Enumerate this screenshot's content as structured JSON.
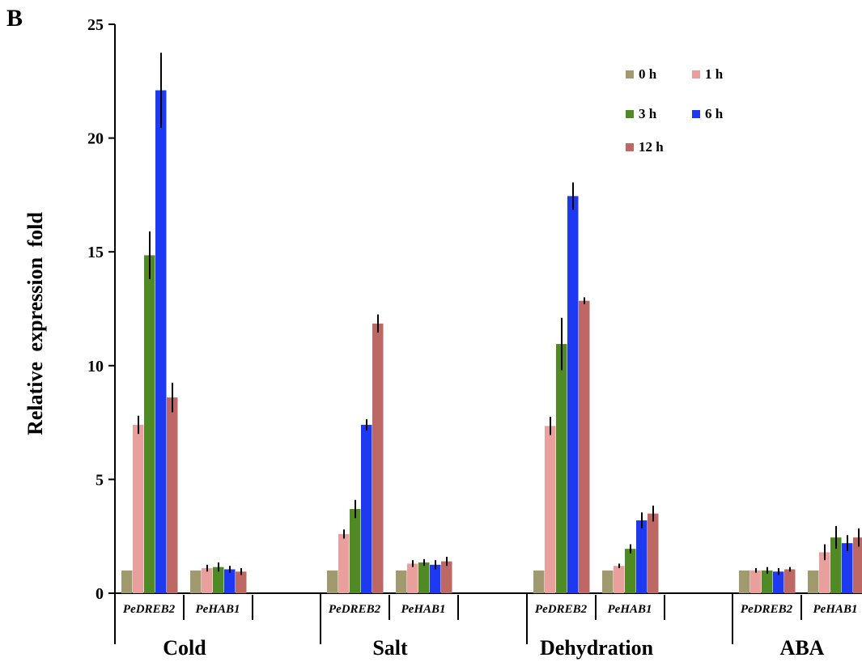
{
  "panel_label": "B",
  "chart_data": {
    "type": "bar",
    "title": "",
    "ylabel": "Relative expression fold",
    "ylim": [
      0,
      25
    ],
    "yticks": [
      "0",
      "5",
      "10",
      "15",
      "20",
      "25"
    ],
    "legend_position": "top-right",
    "series": [
      {
        "name": "0 h",
        "color": "#a09a6e"
      },
      {
        "name": "1 h",
        "color": "#e9a09c"
      },
      {
        "name": "3 h",
        "color": "#4f8a25"
      },
      {
        "name": "6 h",
        "color": "#1e39f2"
      },
      {
        "name": "12 h",
        "color": "#bd6865"
      }
    ],
    "groups": [
      {
        "treatment": "Cold",
        "genes": [
          {
            "gene": "PeDREB2",
            "values": [
              1.0,
              7.4,
              14.85,
              22.1,
              8.6
            ],
            "errors": [
              0,
              0.4,
              1.05,
              1.65,
              0.65
            ]
          },
          {
            "gene": "PeHAB1",
            "values": [
              1.0,
              1.1,
              1.15,
              1.05,
              0.95
            ],
            "errors": [
              0,
              0.15,
              0.2,
              0.15,
              0.15
            ]
          }
        ]
      },
      {
        "treatment": "Salt",
        "genes": [
          {
            "gene": "PeDREB2",
            "values": [
              1.0,
              2.6,
              3.7,
              7.4,
              11.85
            ],
            "errors": [
              0,
              0.2,
              0.4,
              0.25,
              0.4
            ]
          },
          {
            "gene": "PeHAB1",
            "values": [
              1.0,
              1.3,
              1.35,
              1.25,
              1.4
            ],
            "errors": [
              0,
              0.15,
              0.15,
              0.2,
              0.2
            ]
          }
        ]
      },
      {
        "treatment": "Dehydration",
        "genes": [
          {
            "gene": "PeDREB2",
            "values": [
              1.0,
              7.35,
              10.95,
              17.45,
              12.85
            ],
            "errors": [
              0,
              0.4,
              1.15,
              0.6,
              0.15
            ]
          },
          {
            "gene": "PeHAB1",
            "values": [
              1.0,
              1.2,
              1.95,
              3.2,
              3.5
            ],
            "errors": [
              0,
              0.1,
              0.2,
              0.35,
              0.35
            ]
          }
        ]
      },
      {
        "treatment": "ABA",
        "genes": [
          {
            "gene": "PeDREB2",
            "values": [
              1.0,
              1.0,
              1.0,
              0.95,
              1.05
            ],
            "errors": [
              0,
              0.1,
              0.15,
              0.15,
              0.1
            ]
          },
          {
            "gene": "PeHAB1",
            "values": [
              1.0,
              1.8,
              2.45,
              2.2,
              2.45
            ],
            "errors": [
              0,
              0.35,
              0.5,
              0.35,
              0.4
            ]
          }
        ]
      }
    ]
  }
}
